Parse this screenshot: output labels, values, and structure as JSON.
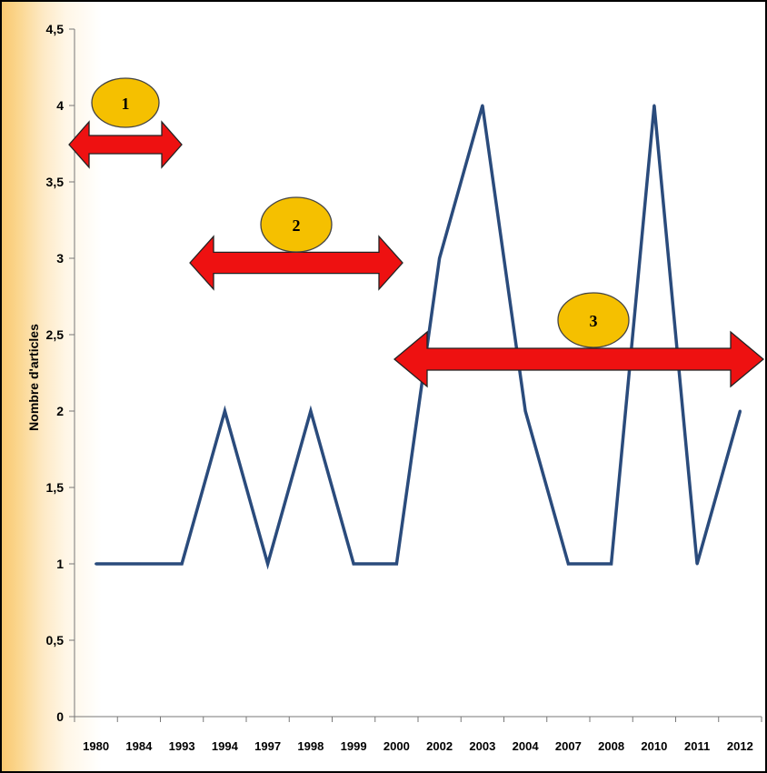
{
  "chart_data": {
    "type": "line",
    "title": "",
    "xlabel": "",
    "ylabel": "Nombre d'articles",
    "ylim": [
      0,
      4.5
    ],
    "y_ticks": [
      "0",
      "0,5",
      "1",
      "1,5",
      "2",
      "2,5",
      "3",
      "3,5",
      "4",
      "4,5"
    ],
    "categories": [
      "1980",
      "1984",
      "1993",
      "1994",
      "1997",
      "1998",
      "1999",
      "2000",
      "2002",
      "2003",
      "2004",
      "2007",
      "2008",
      "2010",
      "2011",
      "2012"
    ],
    "series": [
      {
        "color": "#2a4b7c",
        "values": [
          1,
          1,
          1,
          2,
          1,
          2,
          1,
          1,
          3,
          4,
          2,
          1,
          1,
          4,
          1,
          2
        ]
      }
    ],
    "grid": false,
    "legend": "none",
    "annotations": [
      {
        "label": "1",
        "from": "1980",
        "to": "1984",
        "color": "#ee1111"
      },
      {
        "label": "2",
        "from": "1993",
        "to": "2000",
        "color": "#ee1111"
      },
      {
        "label": "3",
        "from": "2000",
        "to": "2012",
        "color": "#ee1111"
      }
    ],
    "badge_color": "#f5c000"
  }
}
